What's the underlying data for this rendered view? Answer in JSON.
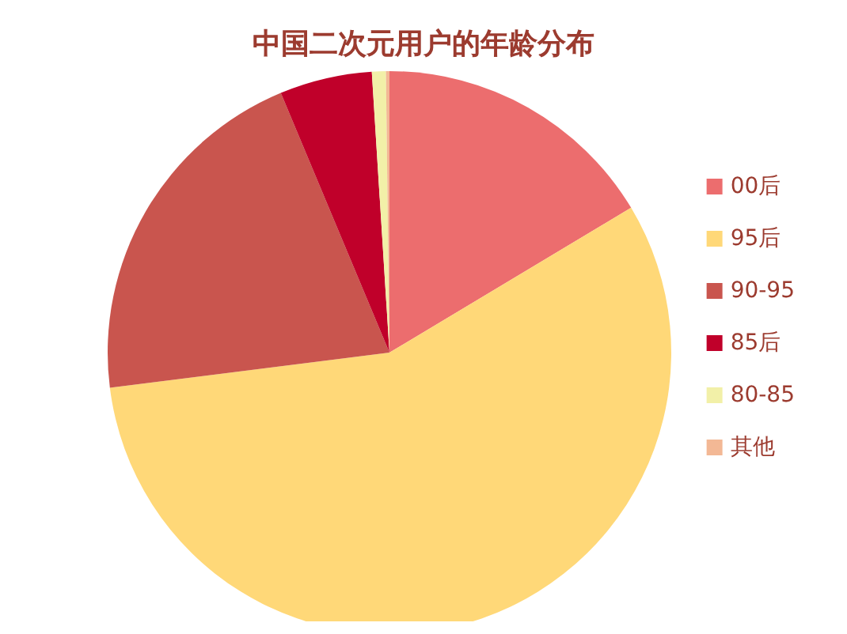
{
  "chart_data": {
    "type": "pie",
    "title": "中国二次元用户的年龄分布",
    "categories": [
      "00后",
      "95后",
      "90-95",
      "85后",
      "80-85",
      "其他"
    ],
    "values": [
      16.4,
      56.6,
      20.7,
      5.3,
      0.8,
      0.2
    ],
    "colors": [
      "#ec6d6e",
      "#ffd878",
      "#c9554e",
      "#c0002a",
      "#f2f0a8",
      "#f3b895"
    ],
    "legend": "right"
  }
}
